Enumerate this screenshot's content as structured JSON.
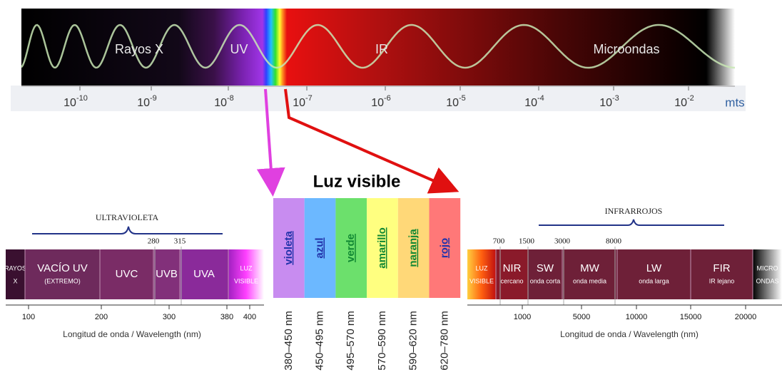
{
  "top_spectrum": {
    "labels": [
      "Rayos X",
      "UV",
      "IR",
      "Microondas"
    ],
    "axis": {
      "base": "10",
      "exponents": [
        "-10",
        "-9",
        "-8",
        "-7",
        "-6",
        "-5",
        "-4",
        "-3",
        "-2"
      ],
      "unit": "mts"
    }
  },
  "visible": {
    "title": "Luz visible",
    "bands": [
      {
        "name": "violeta",
        "range": "380–450 nm"
      },
      {
        "name": "azul",
        "range": "450–495 nm"
      },
      {
        "name": "verde",
        "range": "495–570 nm"
      },
      {
        "name": "amarillo",
        "range": "570–590 nm"
      },
      {
        "name": "naranja",
        "range": "590–620 nm"
      },
      {
        "name": "rojo",
        "range": "620–780 nm"
      }
    ]
  },
  "uv_panel": {
    "title": "ULTRAVIOLETA",
    "top_ticks": [
      "280",
      "315"
    ],
    "segments": [
      {
        "lines": [
          "RAYOS",
          "X"
        ]
      },
      {
        "lines": [
          "VACÍO UV",
          "(EXTREMO)"
        ]
      },
      {
        "lines": [
          "UVC"
        ]
      },
      {
        "lines": [
          "UVB"
        ]
      },
      {
        "lines": [
          "UVA"
        ]
      },
      {
        "lines": [
          "LUZ",
          "VISIBLE"
        ]
      }
    ],
    "ticks": [
      "100",
      "200",
      "300",
      "380",
      "400"
    ],
    "axis_label": "Longitud de onda  / Wavelength (nm)"
  },
  "ir_panel": {
    "title": "INFRARROJOS",
    "top_ticks": [
      "700",
      "1500",
      "3000",
      "8000"
    ],
    "segments": [
      {
        "lines": [
          "LUZ",
          "VISIBLE"
        ]
      },
      {
        "lines": [
          "NIR",
          "cercano"
        ]
      },
      {
        "lines": [
          "SW",
          "onda corta"
        ]
      },
      {
        "lines": [
          "MW",
          "onda media"
        ]
      },
      {
        "lines": [
          "LW",
          "onda larga"
        ]
      },
      {
        "lines": [
          "FIR",
          "IR lejano"
        ]
      },
      {
        "lines": [
          "MICRO",
          "ONDAS"
        ]
      }
    ],
    "ticks": [
      "1000",
      "5000",
      "10000",
      "15000",
      "20000"
    ],
    "axis_label": "Longitud de onda  / Wavelength (nm)"
  }
}
